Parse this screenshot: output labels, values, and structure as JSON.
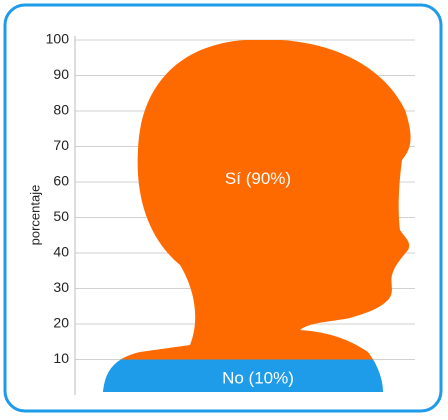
{
  "chart_data": {
    "type": "pictorial-stack",
    "y_label": "porcentaje",
    "series": [
      {
        "color": "#1e9be9",
        "values": [
          10
        ],
        "value_labels": [
          "No (10%)"
        ]
      },
      {
        "color": "#ff6a00",
        "values": [
          90
        ],
        "value_labels": [
          "Sí (90%)"
        ]
      }
    ],
    "ylim": [
      0,
      100
    ],
    "yticks": [
      10,
      20,
      30,
      40,
      50,
      60,
      70,
      80,
      90,
      100
    ],
    "grid": true
  }
}
